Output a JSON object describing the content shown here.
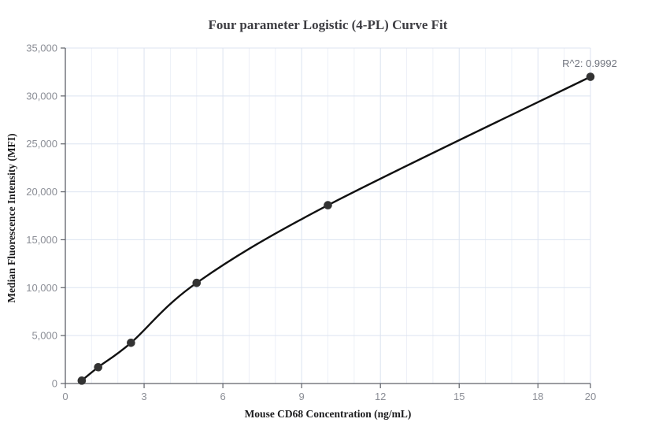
{
  "chart_data": {
    "type": "scatter",
    "title": "Four parameter Logistic (4-PL) Curve Fit",
    "xlabel": "Mouse CD68 Concentration (ng/mL)",
    "ylabel": "Median Fluorescence Intensity (MFI)",
    "annotation": "R^2: 0.9992",
    "r_squared": 0.9992,
    "points": [
      {
        "x": 0.625,
        "y": 300
      },
      {
        "x": 1.25,
        "y": 1700
      },
      {
        "x": 2.5,
        "y": 4250
      },
      {
        "x": 5,
        "y": 10500
      },
      {
        "x": 10,
        "y": 18600
      },
      {
        "x": 20,
        "y": 32000
      }
    ],
    "fit": "smooth 4-PL curve through points",
    "xlim": [
      0,
      20
    ],
    "ylim": [
      0,
      35000
    ],
    "x_ticks": [
      0,
      3,
      6,
      9,
      12,
      15,
      18,
      20
    ],
    "x_minor_step": 1,
    "y_ticks": [
      0,
      5000,
      10000,
      15000,
      20000,
      25000,
      30000,
      35000
    ],
    "y_tick_labels": [
      "0",
      "5,000",
      "10,000",
      "15,000",
      "20,000",
      "25,000",
      "30,000",
      "35,000"
    ],
    "grid": "horizontal major + vertical major/minor",
    "legend": "none",
    "colors": {
      "curve": "#111111",
      "point": "#333333",
      "grid_major": "#dce3f0",
      "grid_minor": "#edf0f8",
      "axis": "#5f6269",
      "tick_label": "#8b8e96",
      "title": "#3d3d42",
      "axis_label": "#1c1c1e",
      "annotation": "#71757f",
      "background": "#ffffff"
    }
  }
}
